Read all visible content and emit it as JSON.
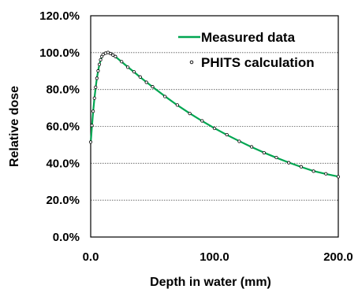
{
  "chart_data": {
    "type": "line",
    "title": "",
    "xlabel": "Depth in water (mm)",
    "ylabel": "Relative dose",
    "xlim": [
      0,
      200
    ],
    "ylim": [
      0,
      120
    ],
    "x_ticks": [
      0,
      100,
      200
    ],
    "x_tick_labels": [
      "0.0",
      "100.0",
      "200.0"
    ],
    "y_ticks": [
      0,
      20,
      40,
      60,
      80,
      100,
      120
    ],
    "y_tick_labels": [
      "0.0%",
      "20.0%",
      "40.0%",
      "60.0%",
      "80.0%",
      "100.0%",
      "120.0%"
    ],
    "y_gridlines": "dotted",
    "legend_position": "top-right",
    "colors": {
      "measured": "#00a651",
      "phits": "#000000"
    },
    "series": [
      {
        "name": "Measured data",
        "style": "line",
        "x": [
          0,
          1,
          2,
          3,
          4,
          5,
          6,
          7,
          8,
          9,
          10,
          12,
          14,
          16,
          18,
          20,
          25,
          30,
          35,
          40,
          45,
          50,
          60,
          70,
          80,
          90,
          100,
          110,
          120,
          130,
          140,
          150,
          160,
          170,
          180,
          190,
          200
        ],
        "y": [
          51,
          60,
          68,
          75,
          81,
          86,
          90,
          93.5,
          96,
          97.8,
          98.9,
          99.8,
          100,
          99.6,
          98.8,
          97.8,
          95,
          92.2,
          89.5,
          86.7,
          84,
          81.4,
          76.3,
          71.5,
          67.1,
          62.9,
          59,
          55.4,
          52,
          48.8,
          45.8,
          43,
          40.4,
          38,
          35.8,
          34.2,
          32.8
        ]
      },
      {
        "name": "PHITS calculation",
        "style": "markers",
        "marker": "open-circle",
        "x": [
          0,
          1,
          2,
          3,
          4,
          5,
          6,
          7,
          8,
          9,
          10,
          12,
          14,
          16,
          18,
          20,
          25,
          30,
          35,
          40,
          45,
          50,
          60,
          70,
          80,
          90,
          100,
          110,
          120,
          130,
          140,
          150,
          160,
          170,
          180,
          190,
          200
        ],
        "y": [
          51.5,
          60.5,
          68.2,
          75.3,
          81.2,
          86.1,
          90.1,
          93.6,
          96.1,
          97.9,
          99,
          99.7,
          100.1,
          99.5,
          98.7,
          97.9,
          95.1,
          92.1,
          89.6,
          86.8,
          83.9,
          81.5,
          76.2,
          71.6,
          67,
          63,
          58.9,
          55.5,
          51.9,
          48.9,
          45.7,
          43.1,
          40.3,
          38.1,
          35.7,
          34.3,
          32.7
        ]
      }
    ]
  }
}
